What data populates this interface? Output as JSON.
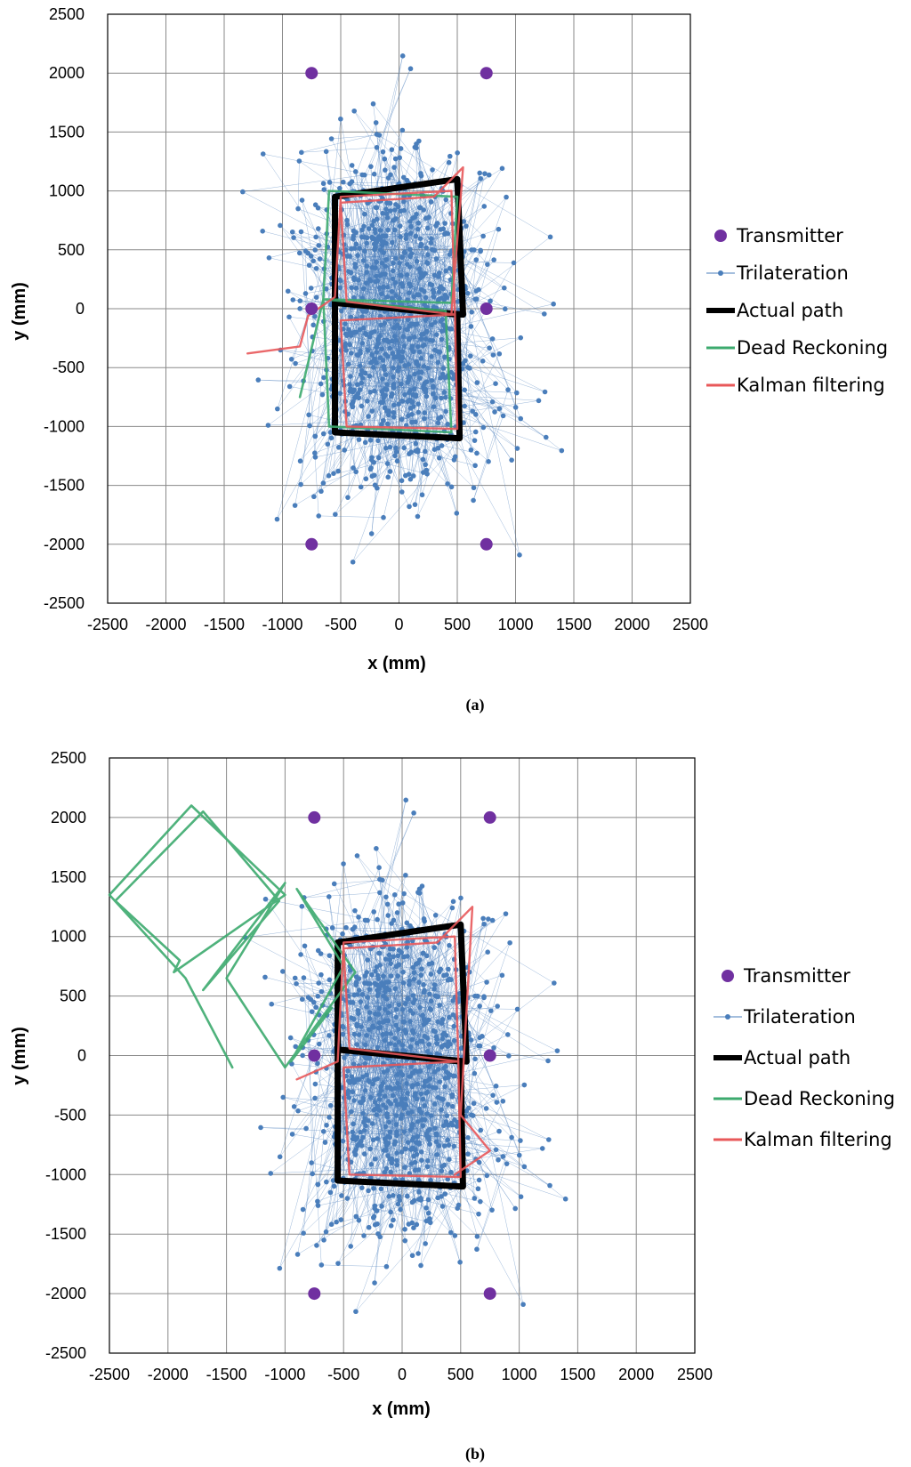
{
  "chart_data": [
    {
      "type": "scatter",
      "caption": "(a)",
      "title": "",
      "xlabel": "x (mm)",
      "ylabel": "y (mm)",
      "xlim": [
        -2500,
        2500
      ],
      "ylim": [
        -2500,
        2500
      ],
      "x_ticks": [
        "-2500",
        "-2000",
        "-1500",
        "-1000",
        "-500",
        "0",
        "500",
        "1000",
        "1500",
        "2000",
        "2500"
      ],
      "y_ticks": [
        "2500",
        "2000",
        "1500",
        "1000",
        "500",
        "0",
        "-500",
        "-1000",
        "-1500",
        "-2000",
        "-2500"
      ],
      "grid": true,
      "legend_position": "right",
      "series": [
        {
          "name": "Transmitter",
          "kind": "marker",
          "color": "#7030a0",
          "points": [
            [
              -750,
              2000
            ],
            [
              750,
              2000
            ],
            [
              -750,
              0
            ],
            [
              750,
              0
            ],
            [
              -750,
              -2000
            ],
            [
              750,
              -2000
            ]
          ]
        },
        {
          "name": "Trilateration",
          "kind": "line-marker",
          "color": "#4a7ebb"
        },
        {
          "name": "Actual path",
          "kind": "thick-line",
          "color": "#000000",
          "points": [
            [
              -550,
              950
            ],
            [
              500,
              1100
            ],
            [
              550,
              -50
            ],
            [
              -550,
              50
            ],
            [
              -550,
              950
            ],
            [
              -550,
              50
            ],
            [
              500,
              -50
            ],
            [
              520,
              -1100
            ],
            [
              -550,
              -1050
            ],
            [
              -550,
              50
            ]
          ]
        },
        {
          "name": "Dead Reckoning",
          "kind": "line",
          "color": "#3caa6e",
          "points": [
            [
              -600,
              1000
            ],
            [
              500,
              950
            ],
            [
              450,
              50
            ],
            [
              -650,
              80
            ],
            [
              -600,
              1000
            ],
            [
              -650,
              80
            ],
            [
              400,
              -20
            ],
            [
              450,
              -1050
            ],
            [
              -600,
              -1000
            ],
            [
              -650,
              80
            ],
            [
              -850,
              -750
            ]
          ]
        },
        {
          "name": "Kalman filtering",
          "kind": "line",
          "color": "#e8585a",
          "points": [
            [
              -1300,
              -380
            ],
            [
              -850,
              -320
            ],
            [
              -780,
              -60
            ],
            [
              -550,
              100
            ],
            [
              -500,
              950
            ],
            [
              450,
              1000
            ],
            [
              480,
              -50
            ],
            [
              -500,
              -100
            ],
            [
              -450,
              -1000
            ],
            [
              500,
              -1020
            ],
            [
              480,
              -50
            ],
            [
              -450,
              60
            ],
            [
              -500,
              900
            ],
            [
              300,
              950
            ],
            [
              550,
              1200
            ],
            [
              450,
              -50
            ]
          ]
        }
      ]
    },
    {
      "type": "scatter",
      "caption": "(b)",
      "title": "",
      "xlabel": "x (mm)",
      "ylabel": "y (mm)",
      "xlim": [
        -2500,
        2500
      ],
      "ylim": [
        -2500,
        2500
      ],
      "x_ticks": [
        "-2500",
        "-2000",
        "-1500",
        "-1000",
        "-500",
        "0",
        "500",
        "1000",
        "1500",
        "2000",
        "2500"
      ],
      "y_ticks": [
        "2500",
        "2000",
        "1500",
        "1000",
        "500",
        "0",
        "-500",
        "-1000",
        "-1500",
        "-2000",
        "-2500"
      ],
      "grid": true,
      "legend_position": "right",
      "series": [
        {
          "name": "Transmitter",
          "kind": "marker",
          "color": "#7030a0",
          "points": [
            [
              -750,
              2000
            ],
            [
              750,
              2000
            ],
            [
              -750,
              0
            ],
            [
              750,
              0
            ],
            [
              -750,
              -2000
            ],
            [
              750,
              -2000
            ]
          ]
        },
        {
          "name": "Trilateration",
          "kind": "line-marker",
          "color": "#4a7ebb"
        },
        {
          "name": "Actual path",
          "kind": "thick-line",
          "color": "#000000",
          "points": [
            [
              -550,
              950
            ],
            [
              500,
              1100
            ],
            [
              550,
              -50
            ],
            [
              -550,
              50
            ],
            [
              -550,
              950
            ],
            [
              -550,
              50
            ],
            [
              500,
              -50
            ],
            [
              520,
              -1100
            ],
            [
              -550,
              -1050
            ],
            [
              -550,
              50
            ]
          ]
        },
        {
          "name": "Dead Reckoning",
          "kind": "line",
          "color": "#3caa6e",
          "points": [
            [
              -1450,
              -100
            ],
            [
              -1850,
              650
            ],
            [
              -2500,
              1350
            ],
            [
              -1800,
              2100
            ],
            [
              -1000,
              1350
            ],
            [
              -1950,
              700
            ],
            [
              -1900,
              800
            ],
            [
              -2450,
              1300
            ],
            [
              -1700,
              2050
            ],
            [
              -1050,
              1300
            ],
            [
              -1700,
              550
            ],
            [
              -1000,
              1450
            ],
            [
              -1500,
              650
            ],
            [
              -1000,
              -100
            ],
            [
              -400,
              700
            ],
            [
              -900,
              1400
            ],
            [
              -500,
              750
            ],
            [
              -950,
              -50
            ],
            [
              -600,
              400
            ]
          ]
        },
        {
          "name": "Kalman filtering",
          "kind": "line",
          "color": "#e8585a",
          "points": [
            [
              -900,
              -200
            ],
            [
              -550,
              -50
            ],
            [
              -500,
              950
            ],
            [
              450,
              1000
            ],
            [
              480,
              -50
            ],
            [
              -500,
              -100
            ],
            [
              -450,
              -1000
            ],
            [
              500,
              -1020
            ],
            [
              480,
              -50
            ],
            [
              -450,
              60
            ],
            [
              -500,
              900
            ],
            [
              300,
              950
            ],
            [
              600,
              1250
            ],
            [
              500,
              -500
            ],
            [
              750,
              -800
            ],
            [
              450,
              -1000
            ]
          ]
        }
      ]
    }
  ]
}
